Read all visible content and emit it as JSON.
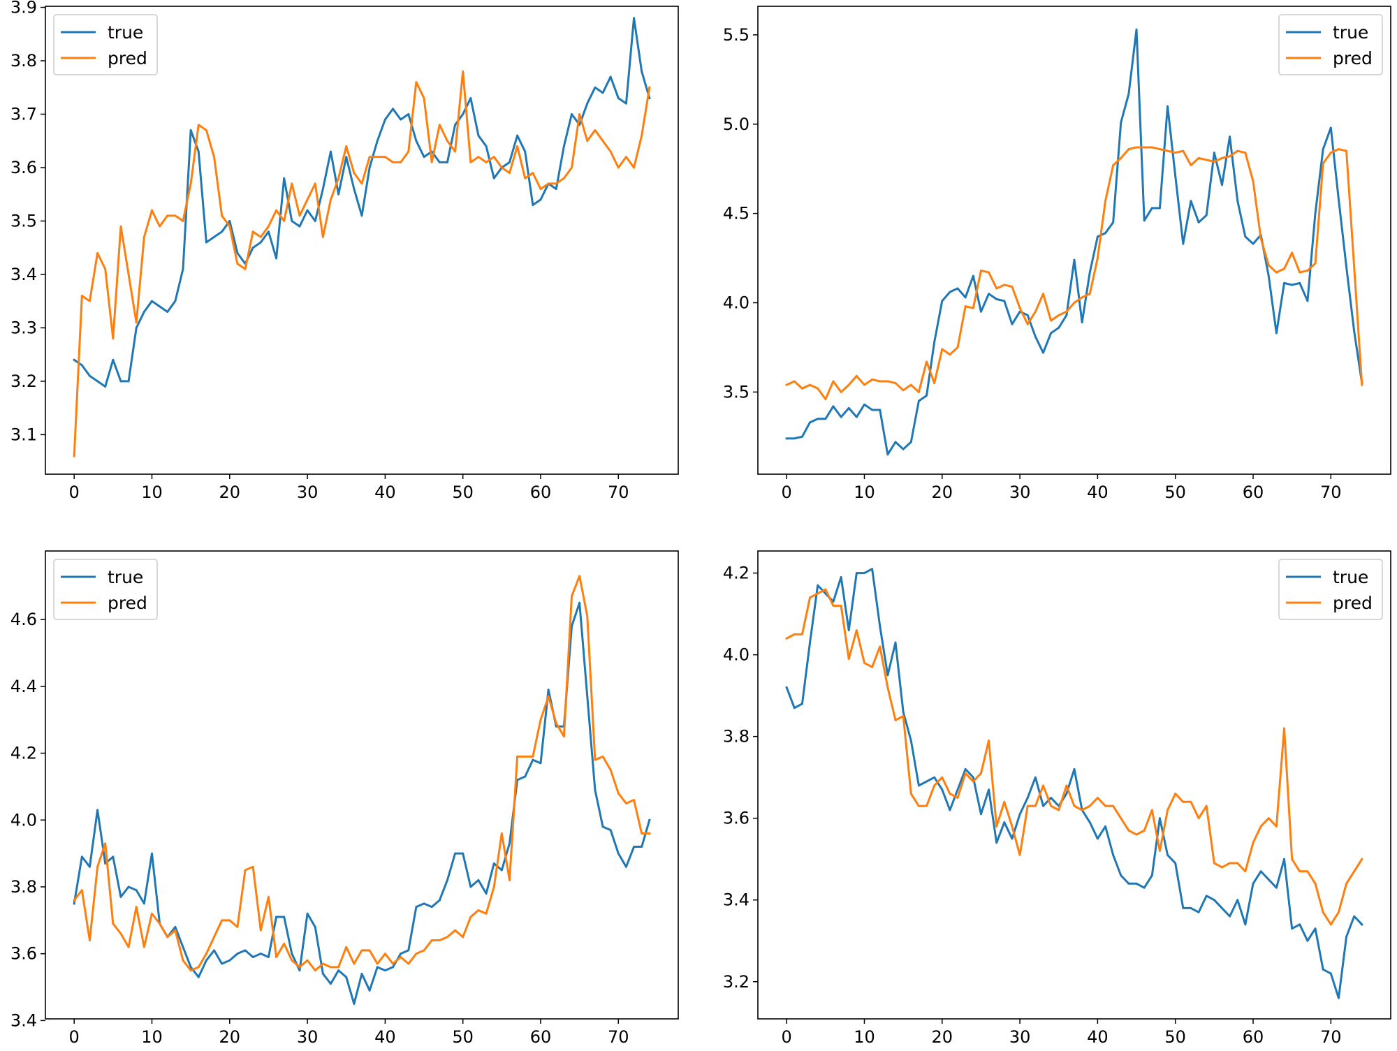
{
  "colors": {
    "true": "#1f77b4",
    "pred": "#ff7f0e",
    "axis": "#000000",
    "legend_border": "#cccccc"
  },
  "chart_data": [
    {
      "type": "line",
      "title": "",
      "xlabel": "",
      "ylabel": "",
      "grid": false,
      "legend_position": "top-left",
      "xlim": [
        -3.7,
        77.7
      ],
      "ylim": [
        3.026,
        3.902
      ],
      "xticks": [
        0,
        10,
        20,
        30,
        40,
        50,
        60,
        70
      ],
      "yticks": [
        3.1,
        3.2,
        3.3,
        3.4,
        3.5,
        3.6,
        3.7,
        3.8,
        3.9
      ],
      "series": [
        {
          "name": "true",
          "color": "#1f77b4",
          "values": [
            3.24,
            3.23,
            3.21,
            3.2,
            3.19,
            3.24,
            3.2,
            3.2,
            3.3,
            3.33,
            3.35,
            3.34,
            3.33,
            3.35,
            3.41,
            3.67,
            3.63,
            3.46,
            3.47,
            3.48,
            3.5,
            3.44,
            3.42,
            3.45,
            3.46,
            3.48,
            3.43,
            3.58,
            3.5,
            3.49,
            3.52,
            3.5,
            3.56,
            3.63,
            3.55,
            3.62,
            3.56,
            3.51,
            3.6,
            3.65,
            3.69,
            3.71,
            3.69,
            3.7,
            3.65,
            3.62,
            3.63,
            3.61,
            3.61,
            3.68,
            3.7,
            3.73,
            3.66,
            3.64,
            3.58,
            3.6,
            3.61,
            3.66,
            3.63,
            3.53,
            3.54,
            3.57,
            3.56,
            3.64,
            3.7,
            3.68,
            3.72,
            3.75,
            3.74,
            3.77,
            3.73,
            3.72,
            3.88,
            3.78,
            3.73
          ]
        },
        {
          "name": "pred",
          "color": "#ff7f0e",
          "values": [
            3.06,
            3.36,
            3.35,
            3.44,
            3.41,
            3.28,
            3.49,
            3.4,
            3.31,
            3.47,
            3.52,
            3.49,
            3.51,
            3.51,
            3.5,
            3.57,
            3.68,
            3.67,
            3.62,
            3.51,
            3.49,
            3.42,
            3.41,
            3.48,
            3.47,
            3.49,
            3.52,
            3.5,
            3.57,
            3.51,
            3.54,
            3.57,
            3.47,
            3.54,
            3.58,
            3.64,
            3.59,
            3.57,
            3.62,
            3.62,
            3.62,
            3.61,
            3.61,
            3.63,
            3.76,
            3.73,
            3.61,
            3.68,
            3.65,
            3.63,
            3.78,
            3.61,
            3.62,
            3.61,
            3.62,
            3.6,
            3.59,
            3.64,
            3.58,
            3.59,
            3.56,
            3.57,
            3.57,
            3.58,
            3.6,
            3.7,
            3.65,
            3.67,
            3.65,
            3.63,
            3.6,
            3.62,
            3.6,
            3.66,
            3.75
          ]
        }
      ]
    },
    {
      "type": "line",
      "title": "",
      "xlabel": "",
      "ylabel": "",
      "grid": false,
      "legend_position": "top-right",
      "xlim": [
        -3.7,
        77.7
      ],
      "ylim": [
        3.04,
        5.66
      ],
      "xticks": [
        0,
        10,
        20,
        30,
        40,
        50,
        60,
        70
      ],
      "yticks": [
        3.5,
        4.0,
        4.5,
        5.0,
        5.5
      ],
      "series": [
        {
          "name": "true",
          "color": "#1f77b4",
          "values": [
            3.24,
            3.24,
            3.25,
            3.33,
            3.35,
            3.35,
            3.42,
            3.36,
            3.41,
            3.36,
            3.43,
            3.4,
            3.4,
            3.15,
            3.22,
            3.18,
            3.22,
            3.45,
            3.48,
            3.78,
            4.01,
            4.06,
            4.08,
            4.03,
            4.15,
            3.95,
            4.05,
            4.02,
            4.01,
            3.88,
            3.95,
            3.93,
            3.81,
            3.72,
            3.83,
            3.86,
            3.93,
            4.24,
            3.89,
            4.17,
            4.37,
            4.39,
            4.45,
            5.01,
            5.17,
            5.53,
            4.46,
            4.53,
            4.53,
            5.1,
            4.71,
            4.33,
            4.57,
            4.45,
            4.49,
            4.84,
            4.66,
            4.93,
            4.57,
            4.37,
            4.33,
            4.38,
            4.15,
            3.83,
            4.11,
            4.1,
            4.11,
            4.01,
            4.5,
            4.86,
            4.98,
            4.58,
            4.2,
            3.84,
            3.55
          ]
        },
        {
          "name": "pred",
          "color": "#ff7f0e",
          "values": [
            3.54,
            3.56,
            3.52,
            3.54,
            3.52,
            3.46,
            3.56,
            3.5,
            3.54,
            3.59,
            3.54,
            3.57,
            3.56,
            3.56,
            3.55,
            3.51,
            3.54,
            3.5,
            3.67,
            3.55,
            3.74,
            3.71,
            3.75,
            3.98,
            3.97,
            4.18,
            4.17,
            4.08,
            4.1,
            4.09,
            3.97,
            3.88,
            3.95,
            4.05,
            3.9,
            3.93,
            3.95,
            4.0,
            4.03,
            4.05,
            4.25,
            4.57,
            4.77,
            4.81,
            4.86,
            4.87,
            4.87,
            4.87,
            4.86,
            4.85,
            4.84,
            4.85,
            4.77,
            4.81,
            4.8,
            4.79,
            4.81,
            4.82,
            4.85,
            4.84,
            4.68,
            4.36,
            4.21,
            4.17,
            4.19,
            4.28,
            4.17,
            4.18,
            4.22,
            4.78,
            4.84,
            4.86,
            4.85,
            4.2,
            3.54
          ]
        }
      ]
    },
    {
      "type": "line",
      "title": "",
      "xlabel": "",
      "ylabel": "",
      "grid": false,
      "legend_position": "top-left",
      "xlim": [
        -3.7,
        77.7
      ],
      "ylim": [
        3.405,
        4.805
      ],
      "xticks": [
        0,
        10,
        20,
        30,
        40,
        50,
        60,
        70
      ],
      "yticks": [
        3.4,
        3.6,
        3.8,
        4.0,
        4.2,
        4.4,
        4.6
      ],
      "series": [
        {
          "name": "true",
          "color": "#1f77b4",
          "values": [
            3.75,
            3.89,
            3.86,
            4.03,
            3.87,
            3.89,
            3.77,
            3.8,
            3.79,
            3.75,
            3.9,
            3.69,
            3.65,
            3.68,
            3.62,
            3.56,
            3.53,
            3.58,
            3.61,
            3.57,
            3.58,
            3.6,
            3.61,
            3.59,
            3.6,
            3.59,
            3.71,
            3.71,
            3.6,
            3.55,
            3.72,
            3.68,
            3.54,
            3.51,
            3.55,
            3.53,
            3.45,
            3.54,
            3.49,
            3.56,
            3.55,
            3.56,
            3.6,
            3.61,
            3.74,
            3.75,
            3.74,
            3.76,
            3.82,
            3.9,
            3.9,
            3.8,
            3.82,
            3.78,
            3.87,
            3.85,
            3.93,
            4.12,
            4.13,
            4.18,
            4.17,
            4.39,
            4.28,
            4.28,
            4.58,
            4.65,
            4.37,
            4.09,
            3.98,
            3.97,
            3.9,
            3.86,
            3.92,
            3.92,
            4.0
          ]
        },
        {
          "name": "pred",
          "color": "#ff7f0e",
          "values": [
            3.76,
            3.79,
            3.64,
            3.86,
            3.93,
            3.69,
            3.66,
            3.62,
            3.74,
            3.62,
            3.72,
            3.69,
            3.65,
            3.67,
            3.58,
            3.55,
            3.56,
            3.6,
            3.65,
            3.7,
            3.7,
            3.68,
            3.85,
            3.86,
            3.67,
            3.77,
            3.59,
            3.63,
            3.58,
            3.56,
            3.58,
            3.55,
            3.57,
            3.56,
            3.56,
            3.62,
            3.57,
            3.61,
            3.61,
            3.57,
            3.6,
            3.57,
            3.59,
            3.57,
            3.6,
            3.61,
            3.64,
            3.64,
            3.65,
            3.67,
            3.65,
            3.71,
            3.73,
            3.72,
            3.8,
            3.96,
            3.82,
            4.19,
            4.19,
            4.19,
            4.3,
            4.37,
            4.29,
            4.25,
            4.67,
            4.73,
            4.61,
            4.18,
            4.19,
            4.15,
            4.08,
            4.05,
            4.06,
            3.96,
            3.96
          ]
        }
      ]
    },
    {
      "type": "line",
      "title": "",
      "xlabel": "",
      "ylabel": "",
      "grid": false,
      "legend_position": "top-right",
      "xlim": [
        -3.7,
        77.7
      ],
      "ylim": [
        3.109,
        4.254
      ],
      "xticks": [
        0,
        10,
        20,
        30,
        40,
        50,
        60,
        70
      ],
      "yticks": [
        3.2,
        3.4,
        3.6,
        3.8,
        4.0,
        4.2
      ],
      "series": [
        {
          "name": "true",
          "color": "#1f77b4",
          "values": [
            3.92,
            3.87,
            3.88,
            4.03,
            4.17,
            4.15,
            4.13,
            4.19,
            4.06,
            4.2,
            4.2,
            4.21,
            4.07,
            3.95,
            4.03,
            3.86,
            3.79,
            3.68,
            3.69,
            3.7,
            3.67,
            3.62,
            3.67,
            3.72,
            3.7,
            3.61,
            3.67,
            3.54,
            3.59,
            3.55,
            3.61,
            3.65,
            3.7,
            3.63,
            3.65,
            3.63,
            3.66,
            3.72,
            3.62,
            3.59,
            3.55,
            3.58,
            3.51,
            3.46,
            3.44,
            3.44,
            3.43,
            3.46,
            3.6,
            3.51,
            3.49,
            3.38,
            3.38,
            3.37,
            3.41,
            3.4,
            3.38,
            3.36,
            3.4,
            3.34,
            3.44,
            3.47,
            3.45,
            3.43,
            3.5,
            3.33,
            3.34,
            3.3,
            3.33,
            3.23,
            3.22,
            3.16,
            3.31,
            3.36,
            3.34
          ]
        },
        {
          "name": "pred",
          "color": "#ff7f0e",
          "values": [
            4.04,
            4.05,
            4.05,
            4.14,
            4.15,
            4.16,
            4.12,
            4.12,
            3.99,
            4.06,
            3.98,
            3.97,
            4.02,
            3.92,
            3.84,
            3.85,
            3.66,
            3.63,
            3.63,
            3.68,
            3.7,
            3.66,
            3.65,
            3.71,
            3.69,
            3.71,
            3.79,
            3.58,
            3.64,
            3.58,
            3.51,
            3.63,
            3.63,
            3.68,
            3.63,
            3.62,
            3.68,
            3.63,
            3.62,
            3.63,
            3.65,
            3.63,
            3.63,
            3.6,
            3.57,
            3.56,
            3.57,
            3.62,
            3.52,
            3.62,
            3.66,
            3.64,
            3.64,
            3.6,
            3.63,
            3.49,
            3.48,
            3.49,
            3.49,
            3.47,
            3.54,
            3.58,
            3.6,
            3.58,
            3.82,
            3.5,
            3.47,
            3.47,
            3.44,
            3.37,
            3.34,
            3.37,
            3.44,
            3.47,
            3.5
          ]
        }
      ]
    }
  ]
}
